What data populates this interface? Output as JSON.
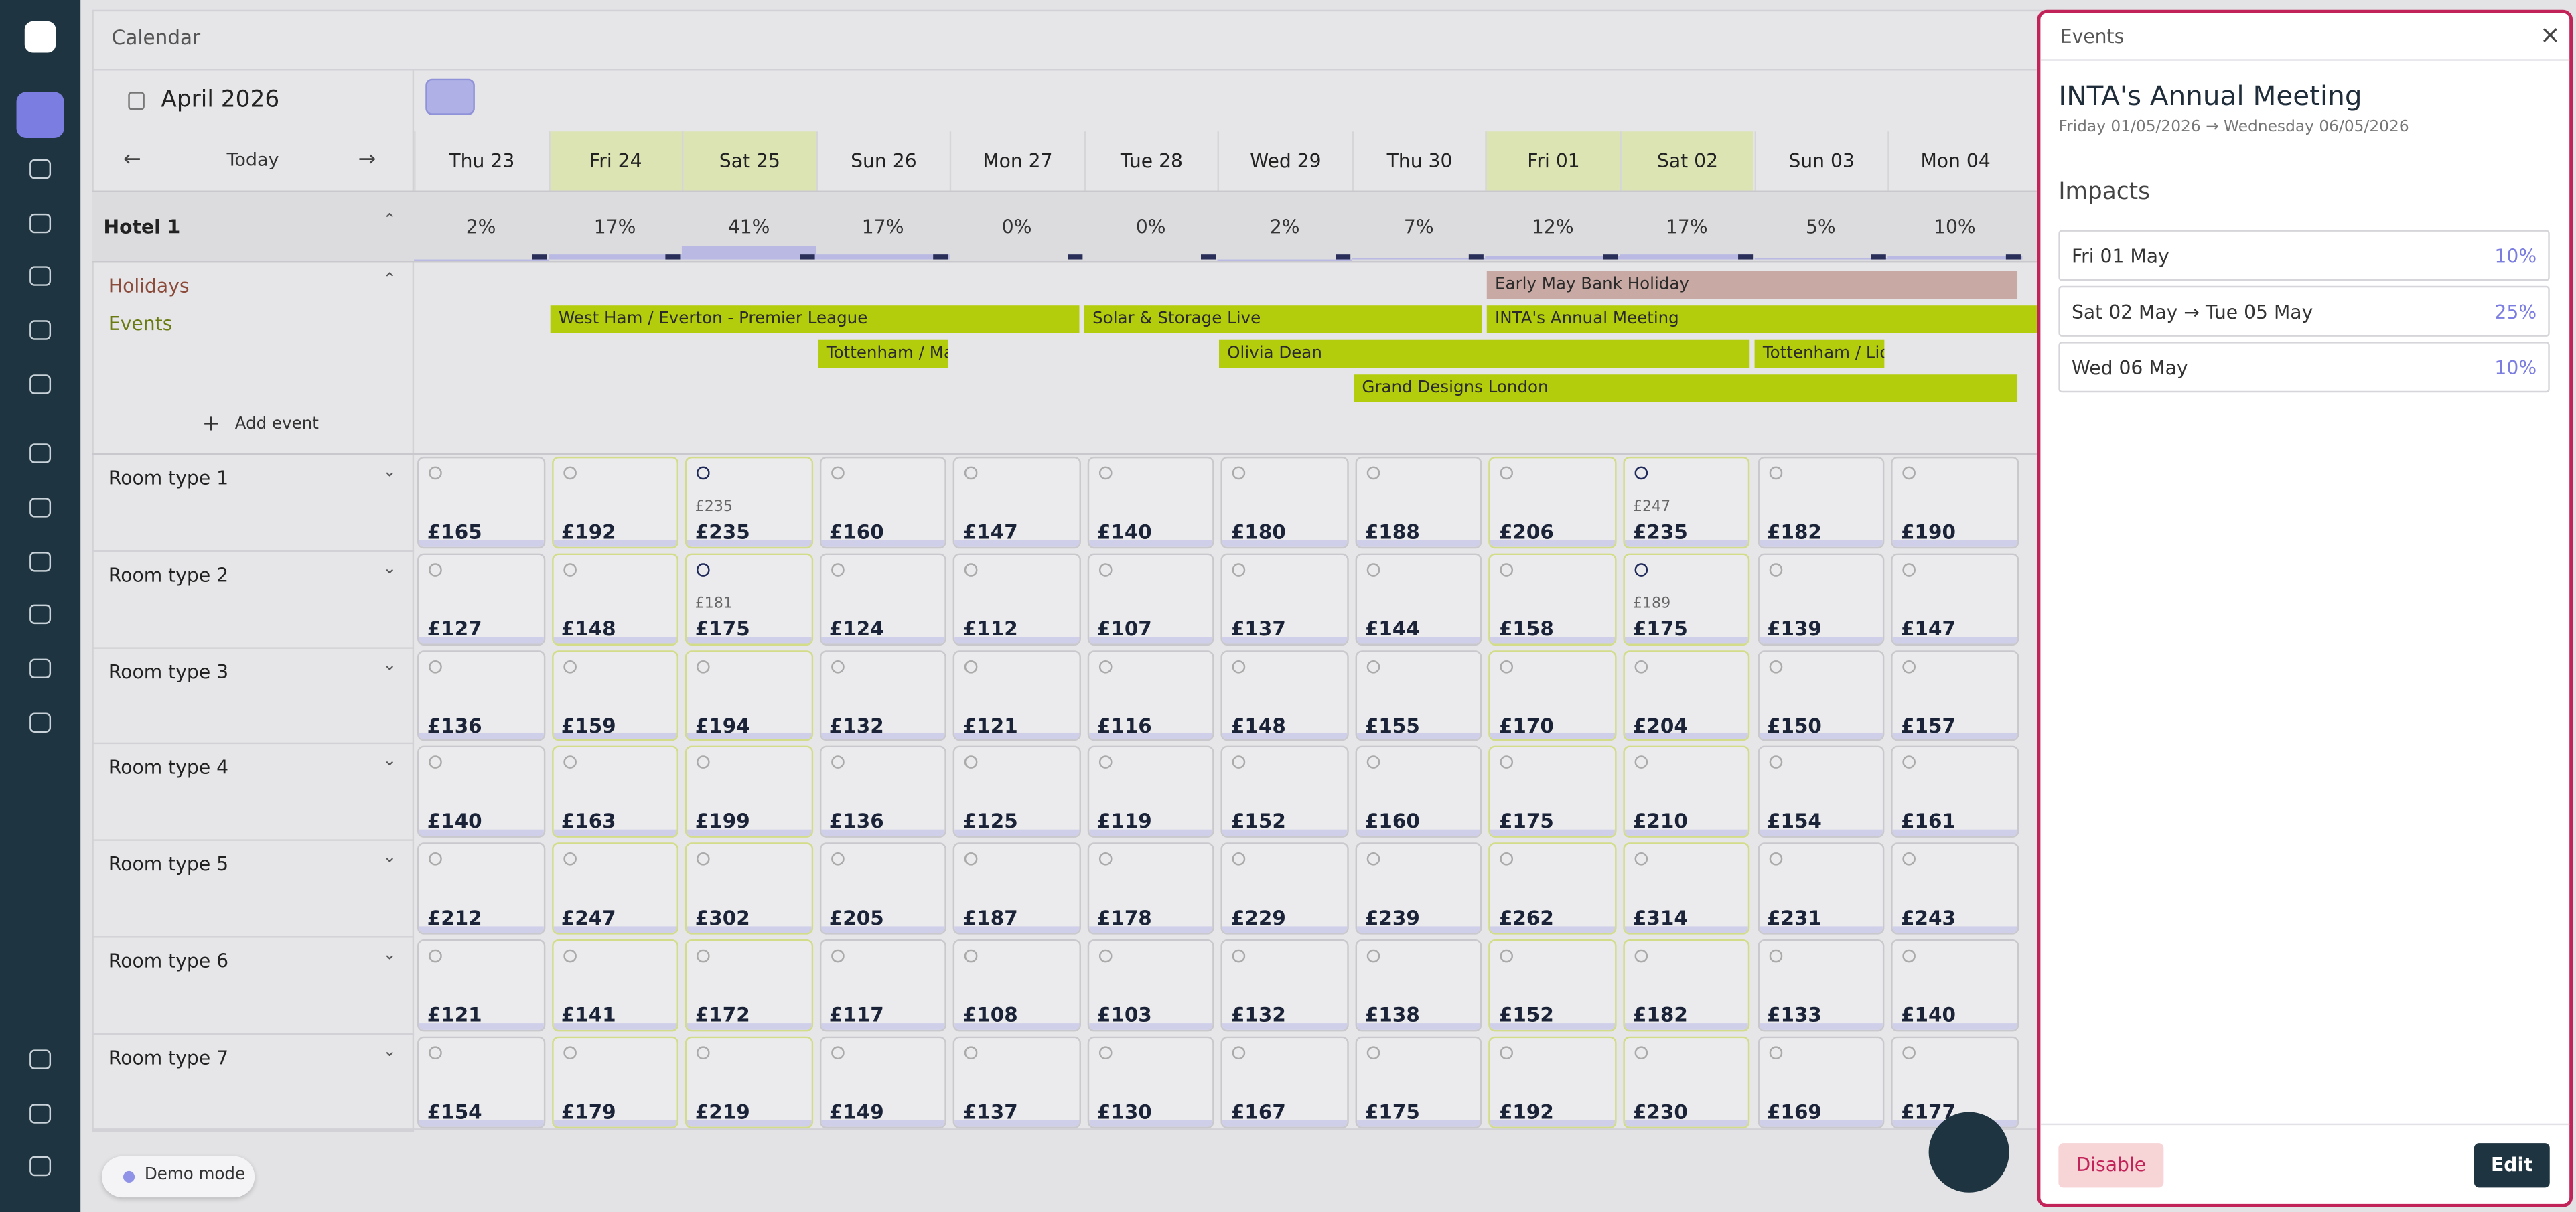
{
  "header": {
    "title": "Calendar"
  },
  "toolbar": {
    "month": "April 2026",
    "today": "Today"
  },
  "days": [
    {
      "label": "Thu 23",
      "highlight": false
    },
    {
      "label": "Fri 24",
      "highlight": true
    },
    {
      "label": "Sat 25",
      "highlight": true
    },
    {
      "label": "Sun 26",
      "highlight": false
    },
    {
      "label": "Mon 27",
      "highlight": false
    },
    {
      "label": "Tue 28",
      "highlight": false
    },
    {
      "label": "Wed 29",
      "highlight": false
    },
    {
      "label": "Thu 30",
      "highlight": false
    },
    {
      "label": "Fri 01",
      "highlight": true
    },
    {
      "label": "Sat 02",
      "highlight": true
    },
    {
      "label": "Sun 03",
      "highlight": false
    },
    {
      "label": "Mon 04",
      "highlight": false
    }
  ],
  "hotel": {
    "name": "Hotel 1",
    "occupancy": [
      "2%",
      "17%",
      "41%",
      "17%",
      "0%",
      "0%",
      "2%",
      "7%",
      "12%",
      "17%",
      "5%",
      "10%"
    ]
  },
  "holidays": {
    "label": "Holidays",
    "items": [
      "Early May Bank Holiday"
    ]
  },
  "events": {
    "label": "Events",
    "add": "Add event",
    "items": [
      "West Ham / Everton - Premier League",
      "Solar & Storage Live",
      "INTA's Annual Meeting",
      "Tottenham / Man",
      "Olivia Dean",
      "Tottenham / Lion",
      "Grand Designs London"
    ]
  },
  "room_types": [
    {
      "name": "Room type 1",
      "cells": [
        {
          "price": "£165"
        },
        {
          "price": "£192"
        },
        {
          "price": "£235",
          "prev": "£235"
        },
        {
          "price": "£160"
        },
        {
          "price": "£147"
        },
        {
          "price": "£140"
        },
        {
          "price": "£180"
        },
        {
          "price": "£188"
        },
        {
          "price": "£206"
        },
        {
          "price": "£235",
          "prev": "£247"
        },
        {
          "price": "£182"
        },
        {
          "price": "£190"
        }
      ]
    },
    {
      "name": "Room type 2",
      "cells": [
        {
          "price": "£127"
        },
        {
          "price": "£148"
        },
        {
          "price": "£175",
          "prev": "£181"
        },
        {
          "price": "£124"
        },
        {
          "price": "£112"
        },
        {
          "price": "£107"
        },
        {
          "price": "£137"
        },
        {
          "price": "£144"
        },
        {
          "price": "£158"
        },
        {
          "price": "£175",
          "prev": "£189"
        },
        {
          "price": "£139"
        },
        {
          "price": "£147"
        }
      ]
    },
    {
      "name": "Room type 3",
      "cells": [
        {
          "price": "£136"
        },
        {
          "price": "£159"
        },
        {
          "price": "£194"
        },
        {
          "price": "£132"
        },
        {
          "price": "£121"
        },
        {
          "price": "£116"
        },
        {
          "price": "£148"
        },
        {
          "price": "£155"
        },
        {
          "price": "£170"
        },
        {
          "price": "£204"
        },
        {
          "price": "£150"
        },
        {
          "price": "£157"
        }
      ]
    },
    {
      "name": "Room type 4",
      "cells": [
        {
          "price": "£140"
        },
        {
          "price": "£163"
        },
        {
          "price": "£199"
        },
        {
          "price": "£136"
        },
        {
          "price": "£125"
        },
        {
          "price": "£119"
        },
        {
          "price": "£152"
        },
        {
          "price": "£160"
        },
        {
          "price": "£175"
        },
        {
          "price": "£210"
        },
        {
          "price": "£154"
        },
        {
          "price": "£161"
        }
      ]
    },
    {
      "name": "Room type 5",
      "cells": [
        {
          "price": "£212"
        },
        {
          "price": "£247"
        },
        {
          "price": "£302"
        },
        {
          "price": "£205"
        },
        {
          "price": "£187"
        },
        {
          "price": "£178"
        },
        {
          "price": "£229"
        },
        {
          "price": "£239"
        },
        {
          "price": "£262"
        },
        {
          "price": "£314"
        },
        {
          "price": "£231"
        },
        {
          "price": "£243"
        }
      ]
    },
    {
      "name": "Room type 6",
      "cells": [
        {
          "price": "£121"
        },
        {
          "price": "£141"
        },
        {
          "price": "£172"
        },
        {
          "price": "£117"
        },
        {
          "price": "£108"
        },
        {
          "price": "£103"
        },
        {
          "price": "£132"
        },
        {
          "price": "£138"
        },
        {
          "price": "£152"
        },
        {
          "price": "£182"
        },
        {
          "price": "£133"
        },
        {
          "price": "£140"
        }
      ]
    },
    {
      "name": "Room type 7",
      "cells": [
        {
          "price": "£154"
        },
        {
          "price": "£179"
        },
        {
          "price": "£219"
        },
        {
          "price": "£149"
        },
        {
          "price": "£137"
        },
        {
          "price": "£130"
        },
        {
          "price": "£167"
        },
        {
          "price": "£175"
        },
        {
          "price": "£192"
        },
        {
          "price": "£230"
        },
        {
          "price": "£169"
        },
        {
          "price": "£177"
        }
      ]
    }
  ],
  "demo": "Demo mode",
  "panel": {
    "header": "Events",
    "title": "INTA's Annual Meeting",
    "dates": "Friday 01/05/2026 → Wednesday 06/05/2026",
    "section": "Impacts",
    "impacts": [
      {
        "period": "Fri 01 May",
        "value": "10%"
      },
      {
        "period": "Sat 02 May → Tue 05 May",
        "value": "25%"
      },
      {
        "period": "Wed 06 May",
        "value": "10%"
      }
    ],
    "disable": "Disable",
    "edit": "Edit"
  }
}
